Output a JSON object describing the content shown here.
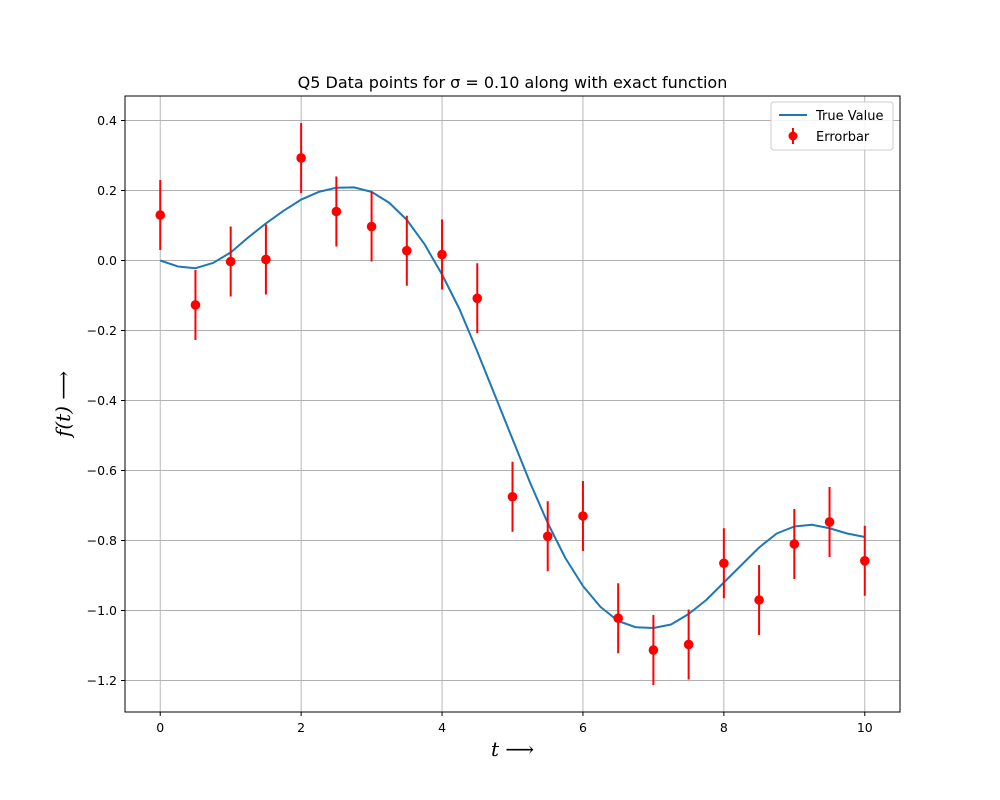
{
  "chart_data": {
    "type": "scatter",
    "title": "Q5 Data points for σ = 0.10 along with exact function",
    "xlabel": "t ⟶",
    "ylabel": "f(t) ⟶",
    "xlim": [
      -0.5,
      10.5
    ],
    "ylim": [
      -1.29,
      0.47
    ],
    "xticks": [
      0,
      2,
      4,
      6,
      8,
      10
    ],
    "xtick_labels": [
      "0",
      "2",
      "4",
      "6",
      "8",
      "10"
    ],
    "yticks": [
      0.4,
      0.2,
      0.0,
      -0.2,
      -0.4,
      -0.6,
      -0.8,
      -1.0,
      -1.2
    ],
    "ytick_labels": [
      "0.4",
      "0.2",
      "0.0",
      "−0.2",
      "−0.4",
      "−0.6",
      "−0.8",
      "−1.0",
      "−1.2"
    ],
    "grid": true,
    "legend_position": "top-right",
    "sigma": 0.1,
    "series": [
      {
        "name": "True Value",
        "kind": "line",
        "color": "#1f77b4",
        "x": [
          0,
          0.25,
          0.5,
          0.75,
          1.0,
          1.25,
          1.5,
          1.75,
          2.0,
          2.25,
          2.5,
          2.75,
          3.0,
          3.25,
          3.5,
          3.75,
          4.0,
          4.25,
          4.5,
          4.75,
          5.0,
          5.25,
          5.5,
          5.75,
          6.0,
          6.25,
          6.5,
          6.75,
          7.0,
          7.25,
          7.5,
          7.75,
          8.0,
          8.25,
          8.5,
          8.75,
          9.0,
          9.25,
          9.5,
          9.75,
          10.0
        ],
        "y": [
          0.0,
          -0.017,
          -0.022,
          -0.007,
          0.023,
          0.066,
          0.106,
          0.142,
          0.174,
          0.196,
          0.208,
          0.209,
          0.196,
          0.165,
          0.116,
          0.047,
          -0.04,
          -0.14,
          -0.26,
          -0.385,
          -0.51,
          -0.635,
          -0.75,
          -0.85,
          -0.93,
          -0.99,
          -1.03,
          -1.048,
          -1.05,
          -1.04,
          -1.01,
          -0.97,
          -0.92,
          -0.87,
          -0.82,
          -0.78,
          -0.76,
          -0.755,
          -0.765,
          -0.78,
          -0.79
        ]
      },
      {
        "name": "Errorbar",
        "kind": "errorbar",
        "color": "#ff0000",
        "x": [
          0,
          0.5,
          1.0,
          1.5,
          2.0,
          2.5,
          3.0,
          3.5,
          4.0,
          4.5,
          5.0,
          5.5,
          6.0,
          6.5,
          7.0,
          7.5,
          8.0,
          8.5,
          9.0,
          9.5,
          10.0
        ],
        "y": [
          0.13,
          -0.127,
          -0.003,
          0.003,
          0.293,
          0.14,
          0.097,
          0.028,
          0.017,
          -0.108,
          -0.675,
          -0.788,
          -0.73,
          -1.022,
          -1.113,
          -1.097,
          -0.865,
          -0.97,
          -0.81,
          -0.747,
          -0.858
        ],
        "yerr": 0.1
      }
    ]
  }
}
